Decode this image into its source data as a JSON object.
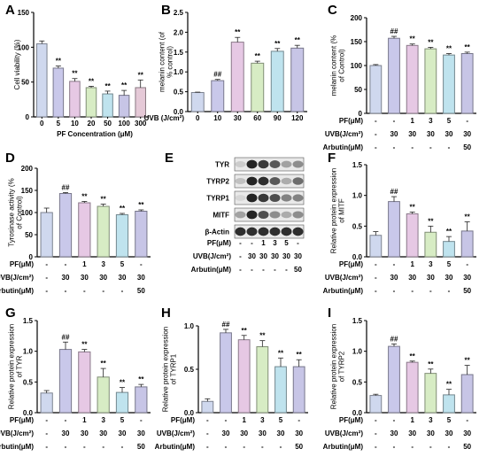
{
  "conditions": {
    "pf_label": "PF(μM)",
    "uvb_label": "UVB(J/cm²)",
    "arbutin_label": "Arbutin(μM)",
    "pf": [
      "-",
      "-",
      "1",
      "3",
      "5",
      "-"
    ],
    "uvb": [
      "-",
      "30",
      "30",
      "30",
      "30",
      "30"
    ],
    "arbutin": [
      "-",
      "-",
      "-",
      "-",
      "-",
      "50"
    ]
  },
  "blot": {
    "label": "E",
    "rows": [
      "TYR",
      "TYRP2",
      "TYRP1",
      "MITF",
      "β-Actin"
    ],
    "intensity": [
      [
        0.15,
        0.95,
        0.85,
        0.7,
        0.35,
        0.45
      ],
      [
        0.2,
        0.95,
        0.9,
        0.7,
        0.3,
        0.6
      ],
      [
        0.1,
        0.95,
        0.85,
        0.75,
        0.5,
        0.5
      ],
      [
        0.35,
        0.95,
        0.75,
        0.45,
        0.3,
        0.45
      ],
      [
        0.9,
        0.9,
        0.9,
        0.9,
        0.9,
        0.9
      ]
    ]
  },
  "chart_data": [
    {
      "label": "A",
      "type": "bar",
      "categories": [
        "0",
        "5",
        "10",
        "20",
        "50",
        "100",
        "300"
      ],
      "values": [
        105,
        70,
        51,
        42,
        33,
        31,
        42
      ],
      "errors": [
        4,
        3,
        4,
        2,
        4,
        7,
        11
      ],
      "annotations": [
        "",
        "**",
        "**",
        "**",
        "**",
        "**",
        "**"
      ],
      "ylabel": "Cell viability (%)",
      "xlabel": "PF Concentration (μM)",
      "ylim": [
        0,
        150
      ],
      "yticks": [
        "0",
        "50",
        "100",
        "150"
      ],
      "colors": [
        "#cfd8ee",
        "#c9c8ea",
        "#e6c8e4",
        "#d7ecc4",
        "#bfe3ee",
        "#c7c5e6",
        "#e5c9d7"
      ]
    },
    {
      "label": "B",
      "type": "bar",
      "categories": [
        "0",
        "10",
        "30",
        "60",
        "90",
        "120"
      ],
      "values": [
        0.48,
        0.78,
        1.75,
        1.22,
        1.52,
        1.6
      ],
      "errors": [
        0.01,
        0.03,
        0.12,
        0.05,
        0.07,
        0.07
      ],
      "annotations": [
        "",
        "##",
        "**",
        "**",
        "**",
        "**"
      ],
      "ylabel": "melanin content (of % control)",
      "xlabel": "UVB (J/cm²)",
      "ylim": [
        0,
        2.5
      ],
      "yticks": [
        "0.0",
        "0.5",
        "1.0",
        "1.5",
        "2.0",
        "2.5"
      ],
      "colors": [
        "#cfd8ee",
        "#c9c8ea",
        "#e6c8e4",
        "#d7ecc4",
        "#bfe3ee",
        "#c7c5e6"
      ]
    },
    {
      "label": "C",
      "type": "bar",
      "values": [
        100,
        157,
        142,
        135,
        122,
        125
      ],
      "errors": [
        2,
        4,
        3,
        3,
        3,
        3
      ],
      "annotations": [
        "",
        "##",
        "**",
        "**",
        "**",
        "**"
      ],
      "ylabel": "melanin content (% of Control)",
      "ylim": [
        0,
        200
      ],
      "yticks": [
        "0",
        "50",
        "100",
        "150",
        "200"
      ],
      "colors": [
        "#cfd8ee",
        "#c9c8ea",
        "#e6c8e4",
        "#d7ecc4",
        "#bfe3ee",
        "#c7c5e6"
      ]
    },
    {
      "label": "D",
      "type": "bar",
      "values": [
        100,
        143,
        122,
        114,
        95,
        103
      ],
      "errors": [
        10,
        2,
        3,
        5,
        3,
        3
      ],
      "annotations": [
        "",
        "##",
        "**",
        "**",
        "**",
        "**"
      ],
      "ylabel": "Tyrosinase activity (% of Control)",
      "ylim": [
        0,
        200
      ],
      "yticks": [
        "0",
        "50",
        "100",
        "150",
        "200"
      ],
      "colors": [
        "#cfd8ee",
        "#c9c8ea",
        "#e6c8e4",
        "#d7ecc4",
        "#bfe3ee",
        "#c7c5e6"
      ]
    },
    {
      "label": "F",
      "type": "bar",
      "values": [
        0.35,
        0.9,
        0.7,
        0.4,
        0.25,
        0.42
      ],
      "errors": [
        0.06,
        0.08,
        0.03,
        0.1,
        0.08,
        0.15
      ],
      "annotations": [
        "",
        "##",
        "**",
        "**",
        "**",
        "**"
      ],
      "ylabel": "Relative protein expression of MITF",
      "ylim": [
        0,
        1.5
      ],
      "yticks": [
        "0.0",
        "0.5",
        "1.0",
        "1.5"
      ],
      "colors": [
        "#cfd8ee",
        "#c9c8ea",
        "#e6c8e4",
        "#d7ecc4",
        "#bfe3ee",
        "#c7c5e6"
      ]
    },
    {
      "label": "G",
      "type": "bar",
      "values": [
        0.32,
        1.03,
        0.99,
        0.58,
        0.33,
        0.42
      ],
      "errors": [
        0.04,
        0.12,
        0.04,
        0.14,
        0.08,
        0.04
      ],
      "annotations": [
        "",
        "##",
        "**",
        "**",
        "**",
        "**"
      ],
      "ylabel": "Relative protein expression of TYR",
      "ylim": [
        0,
        1.5
      ],
      "yticks": [
        "0.0",
        "0.5",
        "1.0",
        "1.5"
      ],
      "colors": [
        "#cfd8ee",
        "#c9c8ea",
        "#e6c8e4",
        "#d7ecc4",
        "#bfe3ee",
        "#c7c5e6"
      ]
    },
    {
      "label": "H",
      "type": "bar",
      "values": [
        0.13,
        0.92,
        0.84,
        0.76,
        0.53,
        0.53
      ],
      "errors": [
        0.03,
        0.04,
        0.05,
        0.07,
        0.1,
        0.08
      ],
      "annotations": [
        "",
        "##",
        "**",
        "**",
        "**",
        "**"
      ],
      "ylabel": "Relative protein expression of TYRP1",
      "ylim": [
        0,
        1.0
      ],
      "yticks": [
        "0.0",
        "0.5",
        "1.0"
      ],
      "colors": [
        "#cfd8ee",
        "#c9c8ea",
        "#e6c8e4",
        "#d7ecc4",
        "#bfe3ee",
        "#c7c5e6"
      ]
    },
    {
      "label": "I",
      "type": "bar",
      "values": [
        0.28,
        1.08,
        0.82,
        0.64,
        0.29,
        0.62
      ],
      "errors": [
        0.02,
        0.04,
        0.02,
        0.07,
        0.09,
        0.15
      ],
      "annotations": [
        "",
        "##",
        "**",
        "**",
        "**",
        "**"
      ],
      "ylabel": "Relative protein expression of TYRP2",
      "ylim": [
        0,
        1.5
      ],
      "yticks": [
        "0.0",
        "0.5",
        "1.0",
        "1.5"
      ],
      "colors": [
        "#cfd8ee",
        "#c9c8ea",
        "#e6c8e4",
        "#d7ecc4",
        "#bfe3ee",
        "#c7c5e6"
      ]
    }
  ]
}
